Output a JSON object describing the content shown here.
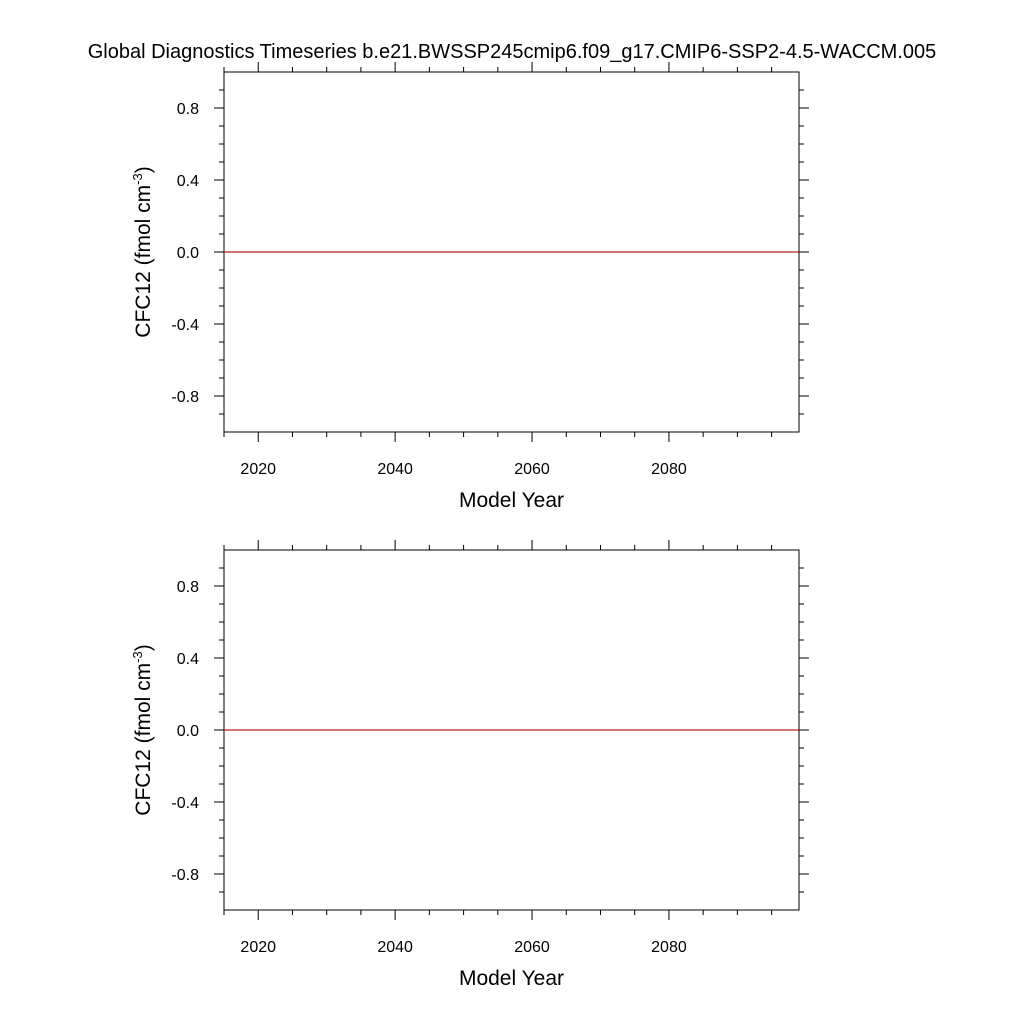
{
  "title": "Global Diagnostics Timeseries b.e21.BWSSP245cmip6.f09_g17.CMIP6-SSP2-4.5-WACCM.005",
  "colors": {
    "series": "#b02020",
    "axis": "#000000",
    "background": "#ffffff"
  },
  "chart_data": [
    {
      "type": "line",
      "xlabel": "Model Year",
      "ylabel_main": "CFC12 (fmol cm",
      "ylabel_sup": "-3",
      "ylabel_close": ")",
      "xlim": [
        2015,
        2099
      ],
      "ylim": [
        -1.0,
        1.0
      ],
      "x_ticks": [
        2020,
        2040,
        2060,
        2080
      ],
      "x_tick_labels": [
        "2020",
        "2040",
        "2060",
        "2080"
      ],
      "y_ticks": [
        0.8,
        0.4,
        0.0,
        -0.4,
        -0.8
      ],
      "y_tick_labels": [
        "0.8",
        "0.4",
        "0.0",
        "-0.4",
        "-0.8"
      ],
      "grid": false,
      "series": [
        {
          "x": [
            2015,
            2099
          ],
          "values": [
            0.0,
            0.0
          ],
          "color": "#b02020"
        }
      ]
    },
    {
      "type": "line",
      "xlabel": "Model Year",
      "ylabel_main": "CFC12 (fmol cm",
      "ylabel_sup": "-3",
      "ylabel_close": ")",
      "xlim": [
        2015,
        2099
      ],
      "ylim": [
        -1.0,
        1.0
      ],
      "x_ticks": [
        2020,
        2040,
        2060,
        2080
      ],
      "x_tick_labels": [
        "2020",
        "2040",
        "2060",
        "2080"
      ],
      "y_ticks": [
        0.8,
        0.4,
        0.0,
        -0.4,
        -0.8
      ],
      "y_tick_labels": [
        "0.8",
        "0.4",
        "0.0",
        "-0.4",
        "-0.8"
      ],
      "grid": false,
      "series": [
        {
          "x": [
            2015,
            2099
          ],
          "values": [
            0.0,
            0.0
          ],
          "color": "#b02020"
        }
      ]
    }
  ]
}
